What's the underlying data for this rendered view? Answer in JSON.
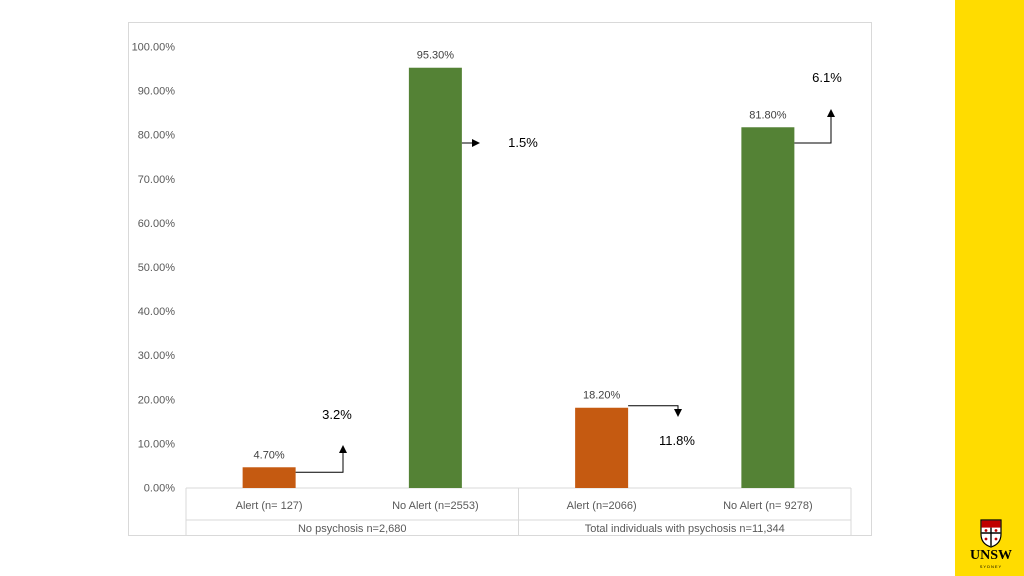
{
  "chart_data": {
    "type": "bar",
    "title": "",
    "xlabel": "",
    "ylabel": "",
    "ylim": [
      0,
      100
    ],
    "y_ticks": [
      "0.00%",
      "10.00%",
      "20.00%",
      "30.00%",
      "40.00%",
      "50.00%",
      "60.00%",
      "70.00%",
      "80.00%",
      "90.00%",
      "100.00%"
    ],
    "groups": [
      {
        "label": "No psychosis n=2,680",
        "categories": [
          "Alert (n= 127)",
          "No Alert (n=2553)"
        ]
      },
      {
        "label": "Total individuals with psychosis n=11,344",
        "categories": [
          "Alert (n=2066)",
          "No Alert (n= 9278)"
        ]
      }
    ],
    "bars": [
      {
        "category": "Alert (n= 127)",
        "value": 4.7,
        "label": "4.70%",
        "color": "#C55A11",
        "change": {
          "label": "3.2%",
          "direction": "up"
        }
      },
      {
        "category": "No Alert (n=2553)",
        "value": 95.3,
        "label": "95.30%",
        "color": "#548235",
        "change": {
          "label": "1.5%",
          "direction": "right"
        }
      },
      {
        "category": "Alert (n=2066)",
        "value": 18.2,
        "label": "18.20%",
        "color": "#C55A11",
        "change": {
          "label": "11.8%",
          "direction": "down"
        }
      },
      {
        "category": "No Alert (n= 9278)",
        "value": 81.8,
        "label": "81.80%",
        "color": "#548235",
        "change": {
          "label": "6.1%",
          "direction": "up"
        }
      }
    ]
  },
  "branding": {
    "logo_text": "UNSW",
    "logo_subtext": "SYDNEY",
    "accent": "#FFDC00"
  }
}
